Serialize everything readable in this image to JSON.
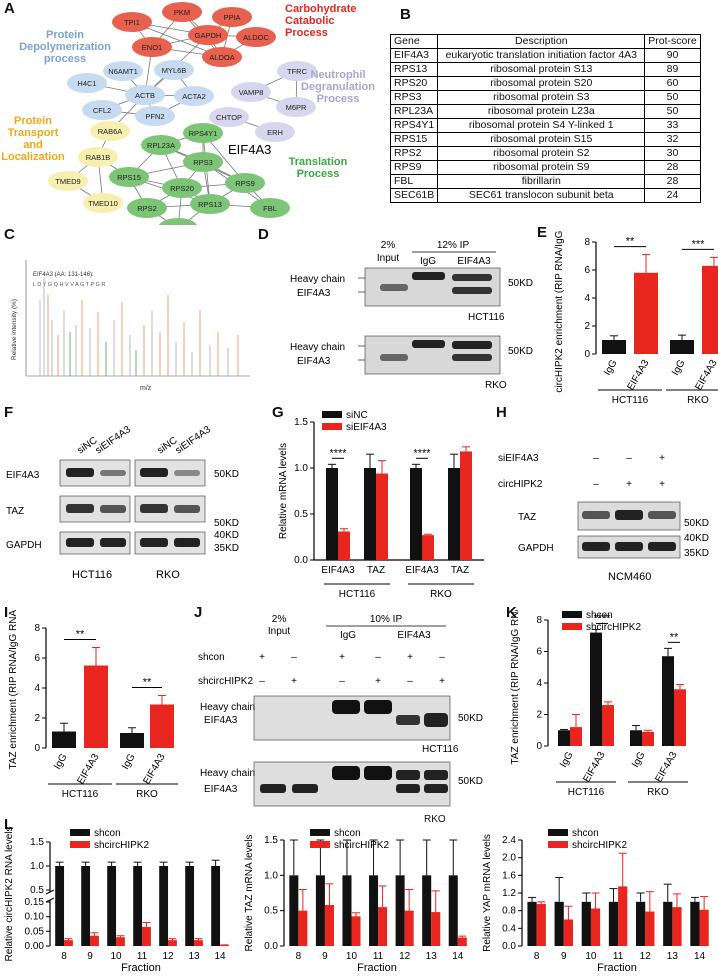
{
  "panels": {
    "A": "A",
    "B": "B",
    "C": "C",
    "D": "D",
    "E": "E",
    "F": "F",
    "G": "G",
    "H": "H",
    "I": "I",
    "J": "J",
    "K": "K",
    "L": "L"
  },
  "colors": {
    "black": "#111111",
    "red": "#e8261f",
    "green": "#4caf50",
    "lightgreen": "#7cc576",
    "blue": "#a9c7e8",
    "purple": "#c9c6e6",
    "yellow": "#f5eeaa",
    "redNode": "#e8614e"
  },
  "network": {
    "groups": [
      {
        "label_lines": [
          "Carbohydrate",
          "Catabolic",
          "Process"
        ],
        "color": "#e8261f"
      },
      {
        "label_lines": [
          "Protein",
          "Depolymerization",
          "process"
        ],
        "color": "#7aa3d6"
      },
      {
        "label_lines": [
          "Neutrophil",
          "Degranulation",
          "Process"
        ],
        "color": "#a9a4d4"
      },
      {
        "label_lines": [
          "Protein",
          "Transport",
          "and",
          "Localization"
        ],
        "color": "#f0a818"
      },
      {
        "label_lines": [
          "Translation",
          "Process"
        ],
        "color": "#3aa845"
      }
    ],
    "center_label": "EIF4A3",
    "nodes": [
      "TPI1",
      "PKM",
      "PPIA",
      "GAPDH",
      "ALDOC",
      "ENO1",
      "ALDOA",
      "N6AMT1",
      "MYL6B",
      "H4C1",
      "ACTB",
      "ACTA2",
      "CFL2",
      "PFN2",
      "TFRC",
      "VAMP8",
      "M6PR",
      "CHTOP",
      "ERH",
      "RAB6A",
      "RAB1B",
      "TMED9",
      "TMED10",
      "RPS4Y1",
      "RPL23A",
      "RPS3",
      "RPS15",
      "RPS20",
      "RPS9",
      "RPS2",
      "RPS13",
      "FBL",
      "SEC61B"
    ]
  },
  "table": {
    "headers": [
      "Gene",
      "Description",
      "Prot-score"
    ],
    "rows": [
      [
        "EIF4A3",
        "eukaryotic translation initiation factor 4A3",
        "90"
      ],
      [
        "RPS13",
        "ribosomal protein S13",
        "89"
      ],
      [
        "RPS20",
        "ribosomal protein S20",
        "60"
      ],
      [
        "RPS3",
        "ribosomal protein S3",
        "50"
      ],
      [
        "RPL23A",
        "ribosomal protein L23a",
        "50"
      ],
      [
        "RPS4Y1",
        "ribosomal protein S4 Y-linked 1",
        "33"
      ],
      [
        "RPS15",
        "ribosomal protein S15",
        "32"
      ],
      [
        "RPS2",
        "ribosomal protein S2",
        "30"
      ],
      [
        "RPS9",
        "ribosomal protein S9",
        "28"
      ],
      [
        "FBL",
        "fibrillarin",
        "28"
      ],
      [
        "SEC61B",
        "SEC61 translocon subunit beta",
        "24"
      ]
    ]
  },
  "ms": {
    "title": "EIF4A3 (AA: 131-146):",
    "peptide": "L D Y G Q H V V A G T P G R",
    "ylabel": "Relative intensity (%)",
    "xlabel": "m/z"
  },
  "blotD": {
    "input": "2%",
    "input2": "Input",
    "ip": "12% IP",
    "igg": "IgG",
    "eif": "EIF4A3",
    "heavy": "Heavy chain",
    "band": "EIF4A3",
    "kd": "50KD",
    "cell1": "HCT116",
    "cell2": "RKO"
  },
  "blotF": {
    "sinc": "siNC",
    "sieif": "siEIF4A3",
    "rows": [
      "EIF4A3",
      "TAZ",
      "GAPDH"
    ],
    "kd": [
      "50KD",
      "50KD",
      "40KD",
      "35KD"
    ],
    "cells": [
      "HCT116",
      "RKO"
    ]
  },
  "blotH": {
    "rows": [
      "siEIF4A3",
      "circHIPK2"
    ],
    "signs": [
      [
        "–",
        "–",
        "+"
      ],
      [
        "–",
        "+",
        "+"
      ]
    ],
    "bands": [
      "TAZ",
      "GAPDH"
    ],
    "kd": [
      "50KD",
      "40KD",
      "35KD"
    ],
    "cell": "NCM460"
  },
  "blotJ": {
    "input": "2%",
    "input2": "Input",
    "ip": "10% IP",
    "igg": "IgG",
    "eif": "EIF4A3",
    "rows": [
      "shcon",
      "shcircHIPK2"
    ],
    "signs": [
      [
        "+",
        "–",
        "+",
        "–",
        "+",
        "–"
      ],
      [
        "–",
        "+",
        "–",
        "+",
        "–",
        "+"
      ]
    ],
    "heavy": "Heavy chain",
    "band": "EIF4A3",
    "kd": "50KD",
    "cells": [
      "HCT116",
      "RKO"
    ]
  },
  "chart_data": [
    {
      "panel": "E",
      "type": "bar",
      "ylabel": "circHIPK2 enrichment (RIP RNA/IgG RNA)",
      "ylim": [
        0,
        8
      ],
      "yticks": [
        0,
        2,
        4,
        6,
        8
      ],
      "categories": [
        "IgG",
        "EIF4A3",
        "IgG",
        "EIF4A3"
      ],
      "groups": [
        "HCT116",
        "RKO"
      ],
      "values": [
        1.0,
        5.8,
        1.0,
        6.3
      ],
      "errors": [
        0.3,
        1.3,
        0.35,
        0.6
      ],
      "colors": [
        "black",
        "red",
        "black",
        "red"
      ],
      "sig": [
        {
          "pair": [
            0,
            1
          ],
          "label": "**"
        },
        {
          "pair": [
            2,
            3
          ],
          "label": "***"
        }
      ]
    },
    {
      "panel": "G",
      "type": "bar",
      "ylabel": "Relative mRNA levels",
      "ylim": [
        0,
        1.5
      ],
      "yticks": [
        0.0,
        0.5,
        1.0,
        1.5
      ],
      "categories": [
        "EIF4A3",
        "TAZ",
        "EIF4A3",
        "TAZ"
      ],
      "groups": [
        "HCT116",
        "RKO"
      ],
      "series": [
        {
          "name": "siNC",
          "values": [
            1.0,
            1.0,
            1.0,
            1.0
          ],
          "errors": [
            0.04,
            0.15,
            0.04,
            0.15
          ]
        },
        {
          "name": "siEIF4A3",
          "values": [
            0.31,
            0.94,
            0.27,
            1.18
          ],
          "errors": [
            0.03,
            0.14,
            0.01,
            0.05
          ]
        }
      ],
      "sig": [
        {
          "index": 0,
          "label": "****"
        },
        {
          "index": 2,
          "label": "****"
        }
      ]
    },
    {
      "panel": "I",
      "type": "bar",
      "ylabel": "TAZ enrichment (RIP RNA/IgG RNA)",
      "ylim": [
        0,
        8
      ],
      "yticks": [
        0,
        2,
        4,
        6,
        8
      ],
      "categories": [
        "IgG",
        "EIF4A3",
        "IgG",
        "EIF4A3"
      ],
      "groups": [
        "HCT116",
        "RKO"
      ],
      "values": [
        1.1,
        5.5,
        1.0,
        2.9
      ],
      "errors": [
        0.55,
        1.2,
        0.35,
        0.6
      ],
      "colors": [
        "black",
        "red",
        "black",
        "red"
      ],
      "sig": [
        {
          "pair": [
            0,
            1
          ],
          "label": "**"
        },
        {
          "pair": [
            2,
            3
          ],
          "label": "**"
        }
      ]
    },
    {
      "panel": "K",
      "type": "bar",
      "ylabel": "TAZ enrichment (RIP RNA/IgG RNA)",
      "ylim": [
        0,
        8
      ],
      "yticks": [
        0,
        2,
        4,
        6,
        8
      ],
      "categories": [
        "IgG",
        "EIF4A3",
        "IgG",
        "EIF4A3"
      ],
      "groups": [
        "HCT116",
        "RKO"
      ],
      "series": [
        {
          "name": "shcon",
          "values": [
            1.0,
            7.2,
            1.0,
            5.7
          ],
          "errors": [
            0.05,
            0.2,
            0.3,
            0.5
          ]
        },
        {
          "name": "shcircHIPK2",
          "values": [
            1.2,
            2.6,
            0.9,
            3.6
          ],
          "errors": [
            0.8,
            0.2,
            0.1,
            0.3
          ]
        }
      ],
      "sig": [
        {
          "index": 1,
          "label": "****"
        },
        {
          "index": 3,
          "label": "**"
        }
      ]
    },
    {
      "panel": "L1",
      "type": "bar",
      "ylabel": "Relative circHIPK2 RNA levels",
      "xlabel": "Fraction",
      "yticks": [
        0.0,
        0.05,
        0.1,
        0.15,
        0.5,
        1.0,
        1.5
      ],
      "categories": [
        "8",
        "9",
        "10",
        "11",
        "12",
        "13",
        "14"
      ],
      "series": [
        {
          "name": "shcon",
          "values": [
            1.0,
            1.0,
            1.0,
            1.0,
            1.0,
            1.0,
            1.0
          ],
          "errors": [
            0.08,
            0.08,
            0.08,
            0.08,
            0.08,
            0.08,
            0.12
          ]
        },
        {
          "name": "shcircHIPK2",
          "values": [
            0.02,
            0.035,
            0.03,
            0.065,
            0.02,
            0.02,
            0.003
          ],
          "errors": [
            0.005,
            0.01,
            0.005,
            0.015,
            0.005,
            0.005,
            0.001
          ]
        }
      ]
    },
    {
      "panel": "L2",
      "type": "bar",
      "ylabel": "Relative TAZ mRNA levels",
      "xlabel": "Fraction",
      "ylim": [
        0,
        1.5
      ],
      "yticks": [
        0.0,
        0.5,
        1.0,
        1.5
      ],
      "categories": [
        "8",
        "9",
        "10",
        "11",
        "12",
        "13",
        "14"
      ],
      "series": [
        {
          "name": "shcon",
          "values": [
            1.0,
            1.0,
            1.0,
            1.0,
            1.0,
            1.0,
            1.0
          ],
          "errors": [
            0.5,
            0.5,
            0.5,
            0.5,
            0.5,
            0.5,
            0.5
          ]
        },
        {
          "name": "shcircHIPK2",
          "values": [
            0.5,
            0.58,
            0.42,
            0.55,
            0.5,
            0.48,
            0.12
          ],
          "errors": [
            0.3,
            0.3,
            0.05,
            0.3,
            0.3,
            0.3,
            0.02
          ]
        }
      ]
    },
    {
      "panel": "L3",
      "type": "bar",
      "ylabel": "Relative YAP mRNA levels",
      "xlabel": "Fraction",
      "ylim": [
        0,
        2.4
      ],
      "yticks": [
        0.0,
        0.4,
        0.8,
        1.2,
        1.6,
        2.0,
        2.4
      ],
      "categories": [
        "8",
        "9",
        "10",
        "11",
        "12",
        "13",
        "14"
      ],
      "series": [
        {
          "name": "shcon",
          "values": [
            1.0,
            1.0,
            1.0,
            1.0,
            1.0,
            1.0,
            1.0
          ],
          "errors": [
            0.1,
            0.55,
            0.2,
            0.3,
            0.2,
            0.4,
            0.1
          ]
        },
        {
          "name": "shcircHIPK2",
          "values": [
            0.95,
            0.6,
            0.85,
            1.35,
            0.78,
            0.88,
            0.82
          ],
          "errors": [
            0.05,
            0.3,
            0.35,
            0.75,
            0.45,
            0.3,
            0.3
          ]
        }
      ]
    }
  ]
}
